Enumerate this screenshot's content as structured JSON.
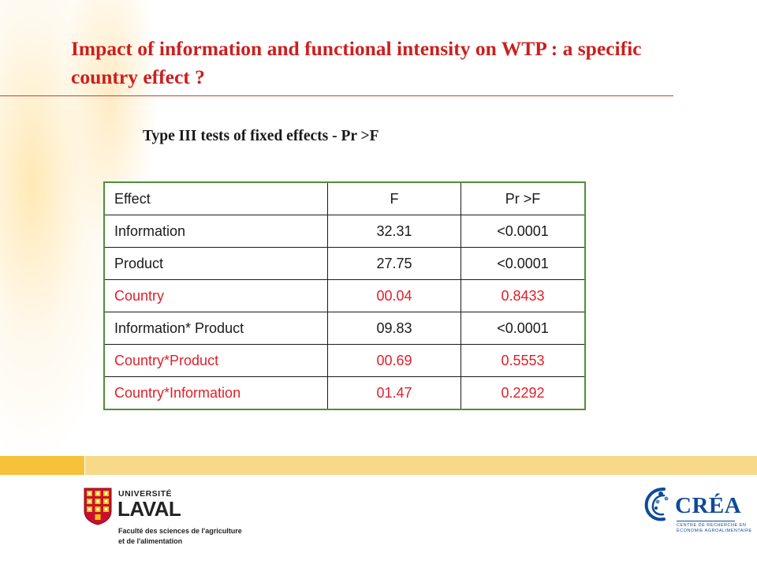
{
  "slide": {
    "title": "Impact of information and functional intensity on WTP : a specific country effect ?",
    "subtitle": "Type III tests of fixed effects - Pr >F"
  },
  "table": {
    "headers": [
      "Effect",
      "F",
      "Pr >F"
    ],
    "rows": [
      {
        "effect": "Information",
        "f": "32.31",
        "pr": "<0.0001",
        "highlight": false
      },
      {
        "effect": "Product",
        "f": "27.75",
        "pr": "<0.0001",
        "highlight": false
      },
      {
        "effect": "Country",
        "f": "00.04",
        "pr": "0.8433",
        "highlight": true
      },
      {
        "effect": "Information* Product",
        "f": "09.83",
        "pr": "<0.0001",
        "highlight": false
      },
      {
        "effect": "Country*Product",
        "f": "00.69",
        "pr": "0.5553",
        "highlight": true
      },
      {
        "effect": "Country*Information",
        "f": "01.47",
        "pr": "0.2292",
        "highlight": true
      }
    ]
  },
  "logos": {
    "ulaval": {
      "line1": "UNIVERSITÉ",
      "line2": "LAVAL",
      "faculty_line1": "Faculté des sciences de l'agriculture",
      "faculty_line2": "et de l'alimentation"
    },
    "crea": {
      "name": "CRÉA",
      "sub_line1": "CENTRE DE RECHERCHE EN",
      "sub_line2": "ÉCONOMIE AGROALIMENTAIRE"
    }
  },
  "colors": {
    "title": "#cc1f1f",
    "highlight_text": "#e0202a",
    "table_frame": "#4f8f3a",
    "band_dark": "#f6c23a",
    "band_light": "#f7d98a",
    "crea_blue": "#0e4a9b",
    "laval_red": "#c8102e"
  },
  "icons": {
    "ulaval_logo": "university-shield-icon",
    "crea_logo": "crea-swirl-icon"
  }
}
